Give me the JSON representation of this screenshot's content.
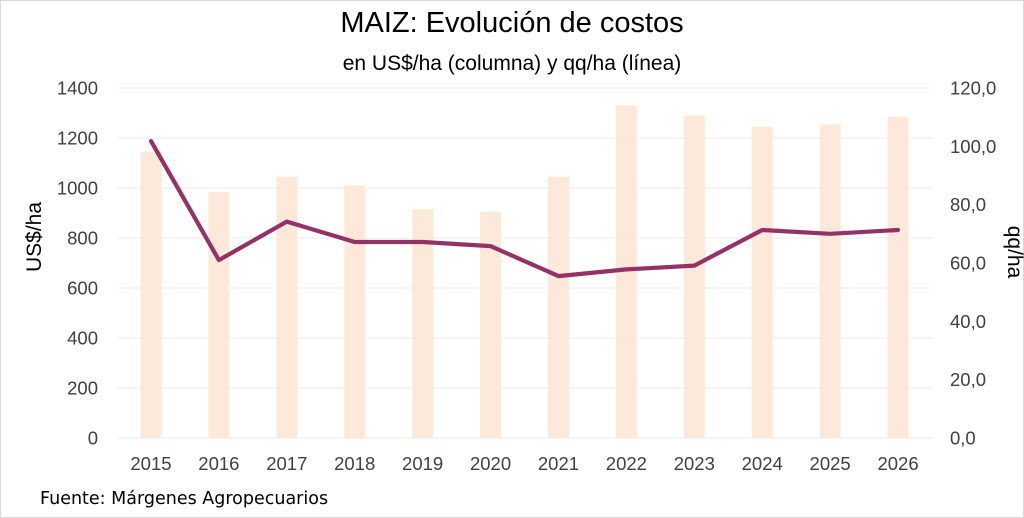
{
  "chart_data": {
    "type": "bar",
    "title": "MAIZ: Evolución de costos",
    "subtitle": "en US$/ha (columna) y qq/ha (línea)",
    "source": "Fuente: Márgenes Agropecuarios",
    "categories": [
      "2015",
      "2016",
      "2017",
      "2018",
      "2019",
      "2020",
      "2021",
      "2022",
      "2023",
      "2024",
      "2025",
      "2026"
    ],
    "series": [
      {
        "name": "US$/ha",
        "type": "bar",
        "axis": "left",
        "color": "#fde9d9",
        "values": [
          1145,
          985,
          1045,
          1010,
          915,
          905,
          1045,
          1330,
          1290,
          1245,
          1255,
          1285
        ]
      },
      {
        "name": "qq/ha",
        "type": "line",
        "axis": "right",
        "color": "#943166",
        "values": [
          101.8,
          61.0,
          74.2,
          67.2,
          67.2,
          65.8,
          55.5,
          57.8,
          59.1,
          71.3,
          70.0,
          71.3
        ]
      }
    ],
    "y_left": {
      "label": "US$/ha",
      "range": [
        0,
        1400
      ],
      "ticks": [
        "0",
        "200",
        "400",
        "600",
        "800",
        "1000",
        "1200",
        "1400"
      ],
      "tick_values": [
        0,
        200,
        400,
        600,
        800,
        1000,
        1200,
        1400
      ]
    },
    "y_right": {
      "label": "qq/ha",
      "range": [
        0,
        120
      ],
      "ticks": [
        "0,0",
        "20,0",
        "40,0",
        "60,0",
        "80,0",
        "100,0",
        "120,0"
      ],
      "tick_values": [
        0,
        20,
        40,
        60,
        80,
        100,
        120
      ]
    },
    "grid": true,
    "legend": "none",
    "gridline_color": "#efefef"
  }
}
